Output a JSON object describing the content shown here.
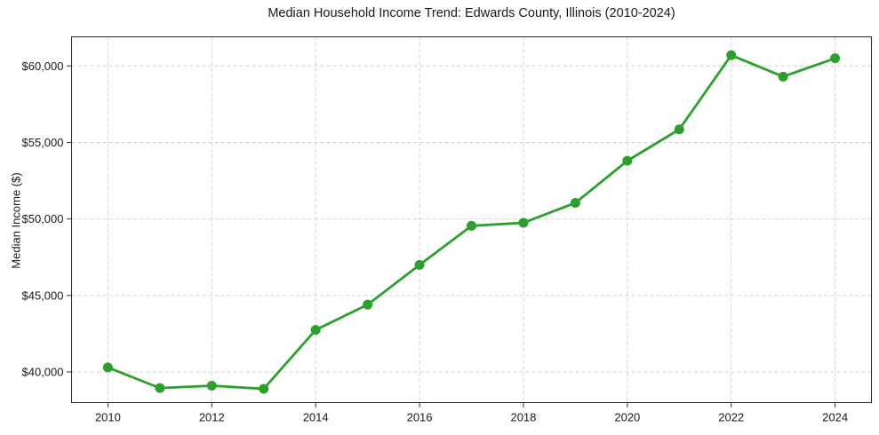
{
  "chart_data": {
    "type": "line",
    "title": "Median Household Income Trend: Edwards County, Illinois (2010-2024)",
    "xlabel": "",
    "ylabel": "Median Income ($)",
    "x": [
      2010,
      2011,
      2012,
      2013,
      2014,
      2015,
      2016,
      2017,
      2018,
      2019,
      2020,
      2021,
      2022,
      2023,
      2024
    ],
    "values": [
      40300,
      38950,
      39100,
      38900,
      42750,
      44400,
      47000,
      49550,
      49750,
      51050,
      53800,
      55850,
      60700,
      59300,
      60500
    ],
    "series_name": "Median household income",
    "xticks": [
      2010,
      2012,
      2014,
      2016,
      2018,
      2020,
      2022,
      2024
    ],
    "ytick_values": [
      40000,
      45000,
      50000,
      55000,
      60000
    ],
    "ytick_labels": [
      "$40,000",
      "$45,000",
      "$50,000",
      "$55,000",
      "$60,000"
    ],
    "xlim": [
      2009.3,
      2024.7
    ],
    "ylim": [
      38000,
      61900
    ],
    "grid": true,
    "grid_style": "dashed",
    "legend_position": "none",
    "line_color": "#2ca02c",
    "marker": "circle",
    "grid_color": "#d2d2d2",
    "spine_color": "#262626",
    "tick_color": "#333333",
    "text_color": "#1a1a1a",
    "background_color": "#ffffff"
  }
}
